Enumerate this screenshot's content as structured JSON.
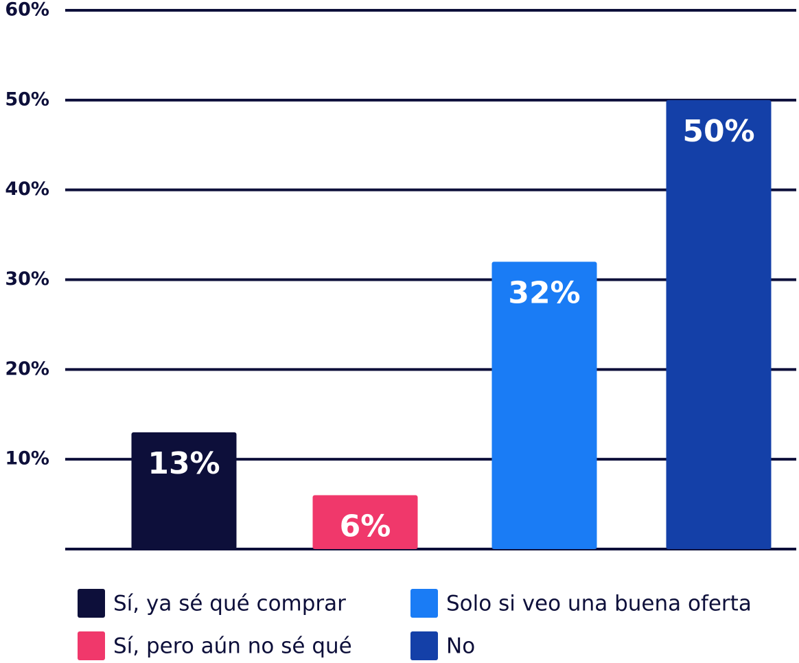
{
  "chart_data": {
    "type": "bar",
    "categories": [
      "Sí, ya sé qué comprar",
      "Sí, pero aún no sé qué",
      "Solo si veo una buena oferta",
      "No"
    ],
    "values": [
      13,
      6,
      32,
      50
    ],
    "value_labels": [
      "13%",
      "6%",
      "32%",
      "50%"
    ],
    "colors": [
      "#0d0f3a",
      "#f0386b",
      "#1a7cf5",
      "#1440a8"
    ],
    "ylim": [
      0,
      60
    ],
    "yticks": [
      {
        "value": 10,
        "label": "10%"
      },
      {
        "value": 20,
        "label": "20%"
      },
      {
        "value": 30,
        "label": "30%"
      },
      {
        "value": 40,
        "label": "40%"
      },
      {
        "value": 50,
        "label": "50%"
      },
      {
        "value": 60,
        "label": "60%"
      }
    ],
    "grid": true,
    "legend": "bottom"
  }
}
